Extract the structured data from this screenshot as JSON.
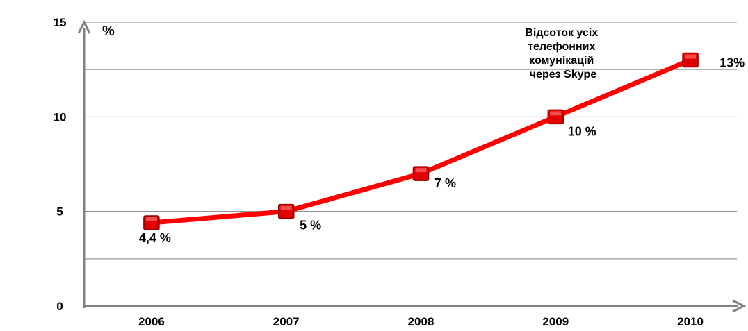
{
  "chart_data": {
    "type": "line",
    "title_lines": [
      "Відсоток усіх",
      "телефонних",
      "комунікацій",
      "через Skype"
    ],
    "y_unit": "%",
    "categories": [
      "2006",
      "2007",
      "2008",
      "2009",
      "2010"
    ],
    "series": [
      {
        "values": [
          4.4,
          5,
          7,
          10,
          13
        ],
        "color": "#ff0000",
        "marker_color": "#e00000"
      }
    ],
    "data_labels": [
      "4,4 %",
      "5 %",
      "7 %",
      "10 %",
      "13%"
    ],
    "ylim": [
      0,
      15
    ],
    "y_ticks": [
      0,
      5,
      10,
      15
    ],
    "grid": true,
    "axis_color": "#808080",
    "grid_color": "#808080"
  }
}
